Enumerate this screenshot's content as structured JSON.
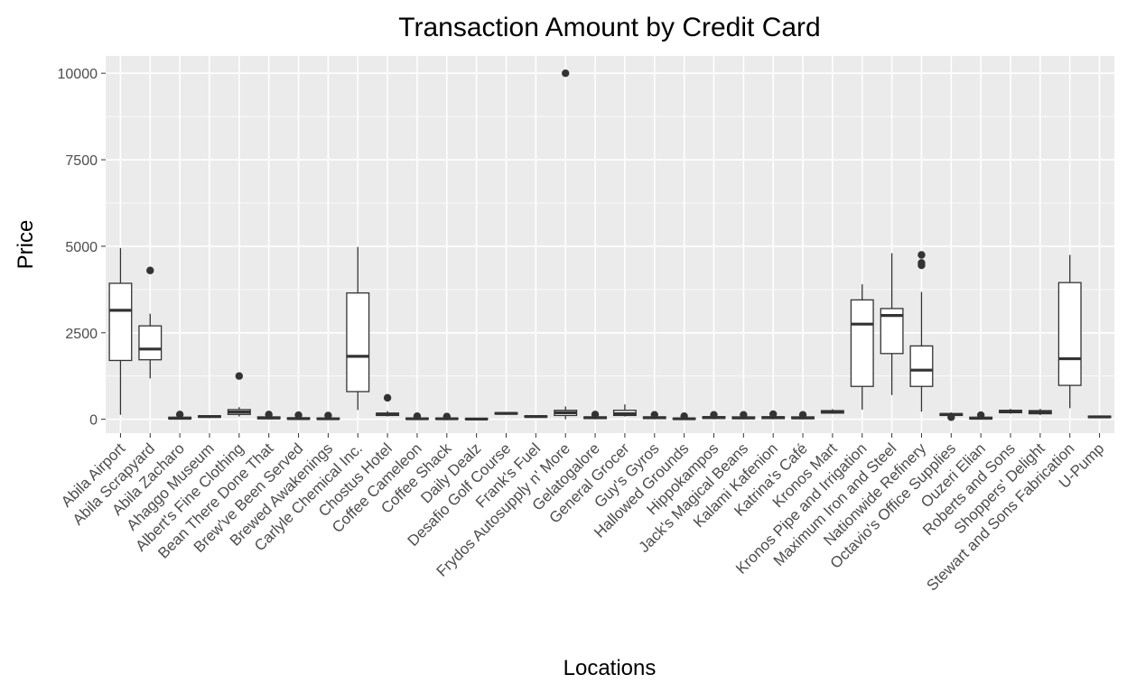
{
  "chart_data": {
    "type": "boxplot",
    "title": "Transaction Amount by Credit Card",
    "xlabel": "Locations",
    "ylabel": "Price",
    "ylim": [
      -400,
      10500
    ],
    "yticks": [
      0,
      2500,
      5000,
      7500,
      10000
    ],
    "grid": true,
    "legend": "none",
    "colors": {
      "panel": "#ebebeb",
      "grid": "#ffffff",
      "box_fill": "#ffffff",
      "box_line": "#333333",
      "text": "#4d4d4d"
    },
    "categories": [
      "Abila Airport",
      "Abila Scrapyard",
      "Abila Zacharo",
      "Ahaggo Museum",
      "Albert's Fine Clothing",
      "Bean There Done That",
      "Brew've Been Served",
      "Brewed Awakenings",
      "Carlyle Chemical Inc.",
      "Chostus Hotel",
      "Coffee Cameleon",
      "Coffee Shack",
      "Daily Dealz",
      "Desafio Golf Course",
      "Frank's Fuel",
      "Frydos Autosupply n' More",
      "Gelatogalore",
      "General Grocer",
      "Guy's Gyros",
      "Hallowed Grounds",
      "Hippokampos",
      "Jack's Magical Beans",
      "Kalami Kafenion",
      "Katrina's Café",
      "Kronos Mart",
      "Kronos Pipe and Irrigation",
      "Maximum Iron and Steel",
      "Nationwide Refinery",
      "Octavio's Office Supplies",
      "Ouzeri Elian",
      "Roberts and Sons",
      "Shoppers' Delight",
      "Stewart and Sons Fabrication",
      "U-Pump"
    ],
    "boxes": [
      {
        "min": 130,
        "q1": 1700,
        "median": 3150,
        "q3": 3930,
        "max": 4950,
        "outliers": []
      },
      {
        "min": 1180,
        "q1": 1720,
        "median": 2030,
        "q3": 2700,
        "max": 3050,
        "outliers": [
          4300
        ]
      },
      {
        "min": 0,
        "q1": 10,
        "median": 30,
        "q3": 60,
        "max": 110,
        "outliers": [
          140
        ]
      },
      {
        "min": 40,
        "q1": 60,
        "median": 80,
        "q3": 100,
        "max": 120,
        "outliers": []
      },
      {
        "min": 80,
        "q1": 140,
        "median": 210,
        "q3": 280,
        "max": 350,
        "outliers": [
          1250
        ]
      },
      {
        "min": 0,
        "q1": 15,
        "median": 40,
        "q3": 70,
        "max": 110,
        "outliers": [
          140
        ]
      },
      {
        "min": 0,
        "q1": 5,
        "median": 20,
        "q3": 40,
        "max": 80,
        "outliers": [
          120
        ]
      },
      {
        "min": 0,
        "q1": 5,
        "median": 15,
        "q3": 35,
        "max": 70,
        "outliers": [
          110
        ]
      },
      {
        "min": 270,
        "q1": 800,
        "median": 1820,
        "q3": 3650,
        "max": 4980,
        "outliers": []
      },
      {
        "min": 80,
        "q1": 110,
        "median": 140,
        "q3": 180,
        "max": 240,
        "outliers": [
          620
        ]
      },
      {
        "min": 0,
        "q1": 5,
        "median": 15,
        "q3": 35,
        "max": 70,
        "outliers": [
          90
        ]
      },
      {
        "min": 0,
        "q1": 5,
        "median": 15,
        "q3": 30,
        "max": 60,
        "outliers": [
          80
        ]
      },
      {
        "min": 0,
        "q1": 2,
        "median": 8,
        "q3": 18,
        "max": 30,
        "outliers": []
      },
      {
        "min": 130,
        "q1": 150,
        "median": 170,
        "q3": 190,
        "max": 210,
        "outliers": []
      },
      {
        "min": 50,
        "q1": 65,
        "median": 80,
        "q3": 95,
        "max": 110,
        "outliers": []
      },
      {
        "min": 0,
        "q1": 110,
        "median": 190,
        "q3": 260,
        "max": 370,
        "outliers": [
          10000
        ]
      },
      {
        "min": 0,
        "q1": 20,
        "median": 45,
        "q3": 70,
        "max": 110,
        "outliers": [
          140
        ]
      },
      {
        "min": 80,
        "q1": 110,
        "median": 160,
        "q3": 260,
        "max": 430,
        "outliers": []
      },
      {
        "min": 0,
        "q1": 20,
        "median": 45,
        "q3": 70,
        "max": 110,
        "outliers": [
          130
        ]
      },
      {
        "min": 0,
        "q1": 5,
        "median": 15,
        "q3": 30,
        "max": 60,
        "outliers": [
          90
        ]
      },
      {
        "min": 0,
        "q1": 25,
        "median": 50,
        "q3": 75,
        "max": 110,
        "outliers": [
          130
        ]
      },
      {
        "min": 0,
        "q1": 20,
        "median": 40,
        "q3": 70,
        "max": 100,
        "outliers": [
          130
        ]
      },
      {
        "min": 0,
        "q1": 20,
        "median": 45,
        "q3": 75,
        "max": 110,
        "outliers": [
          150
        ]
      },
      {
        "min": 0,
        "q1": 20,
        "median": 40,
        "q3": 70,
        "max": 100,
        "outliers": [
          130
        ]
      },
      {
        "min": 160,
        "q1": 180,
        "median": 210,
        "q3": 250,
        "max": 290,
        "outliers": []
      },
      {
        "min": 280,
        "q1": 950,
        "median": 2750,
        "q3": 3450,
        "max": 3900,
        "outliers": []
      },
      {
        "min": 700,
        "q1": 1900,
        "median": 3000,
        "q3": 3200,
        "max": 4800,
        "outliers": []
      },
      {
        "min": 220,
        "q1": 950,
        "median": 1420,
        "q3": 2120,
        "max": 3680,
        "outliers": [
          4450,
          4520,
          4750
        ]
      },
      {
        "min": 40,
        "q1": 110,
        "median": 140,
        "q3": 165,
        "max": 200,
        "outliers": [
          60
        ]
      },
      {
        "min": 0,
        "q1": 10,
        "median": 30,
        "q3": 60,
        "max": 100,
        "outliers": [
          120
        ]
      },
      {
        "min": 160,
        "q1": 190,
        "median": 220,
        "q3": 260,
        "max": 300,
        "outliers": []
      },
      {
        "min": 120,
        "q1": 160,
        "median": 200,
        "q3": 250,
        "max": 300,
        "outliers": []
      },
      {
        "min": 320,
        "q1": 980,
        "median": 1750,
        "q3": 3950,
        "max": 4750,
        "outliers": []
      },
      {
        "min": 30,
        "q1": 50,
        "median": 70,
        "q3": 90,
        "max": 110,
        "outliers": []
      }
    ]
  }
}
